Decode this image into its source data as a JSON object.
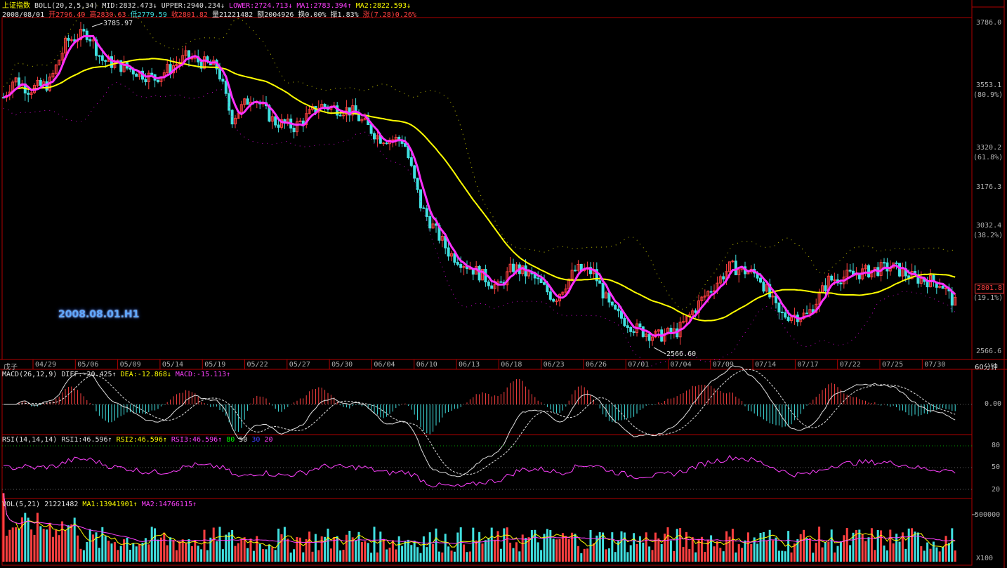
{
  "main_header": {
    "index_name": "上证指数",
    "indicator": "BOLL(20,2,5,34)",
    "mid": "MID:2832.473",
    "upper": "UPPER:2940.234",
    "lower": "LOWER:2724.713",
    "ma1": "MA1:2783.394",
    "ma2": "MA2:2822.593"
  },
  "quote_line": {
    "date": "2008/08/01",
    "open": "开2796.40",
    "high": "高2830.63",
    "low": "低2779.59",
    "close": "收2801.82",
    "volume": "量21221482",
    "amount": "额2004926",
    "turnover": "换0.00%",
    "amplitude": "振1.83%",
    "change": "涨(7.28)0.26%"
  },
  "price_axis": [
    {
      "label": "3786.0"
    },
    {
      "label": "3553.1"
    },
    {
      "label": "(80.9%)"
    },
    {
      "label": "3320.2"
    },
    {
      "label": "(61.8%)"
    },
    {
      "label": "3176.3"
    },
    {
      "label": "3032.4"
    },
    {
      "label": "(38.2%)"
    },
    {
      "label": "(19.1%)"
    },
    {
      "label": "2566.6"
    }
  ],
  "current_price": "2801.8",
  "high_marker": "3785.97",
  "low_marker": "2566.60",
  "watermark": "2008.08.01.H1",
  "date_axis": {
    "first_label": "戊子",
    "labels": [
      "04/29",
      "05/06",
      "05/09",
      "05/14",
      "05/19",
      "05/22",
      "05/27",
      "05/30",
      "06/04",
      "06/10",
      "06/13",
      "06/18",
      "06/23",
      "06/26",
      "07/01",
      "07/04",
      "07/09",
      "07/14",
      "07/17",
      "07/22",
      "07/25",
      "07/30"
    ],
    "period": "60分钟"
  },
  "macd_header": {
    "name": "MACD(26,12,9)",
    "diff": "DIFF:-20.425",
    "dea": "DEA:-12.868",
    "macd": "MACD:-15.113"
  },
  "macd_axis": "0.00",
  "rsi_header": {
    "name": "RSI(14,14,14)",
    "rsi1": "RSI1:46.596",
    "rsi2": "RSI2:46.596",
    "rsi3": "RSI3:46.596",
    "l80": "80",
    "l50": "50",
    "l30": "30",
    "l20": "20"
  },
  "rsi_axis": [
    "80",
    "50",
    "20"
  ],
  "vol_header": {
    "name": "VOL(5,21)",
    "value": "21221482",
    "ma1": "MA1:13941901",
    "ma2": "MA2:14766115"
  },
  "vol_axis": [
    "500000",
    "X100"
  ],
  "colors": {
    "up": "#ff4040",
    "down": "#40e0e0",
    "ma_yellow": "#ffff00",
    "ma_magenta": "#ff30ff",
    "frame": "#b00000"
  }
}
